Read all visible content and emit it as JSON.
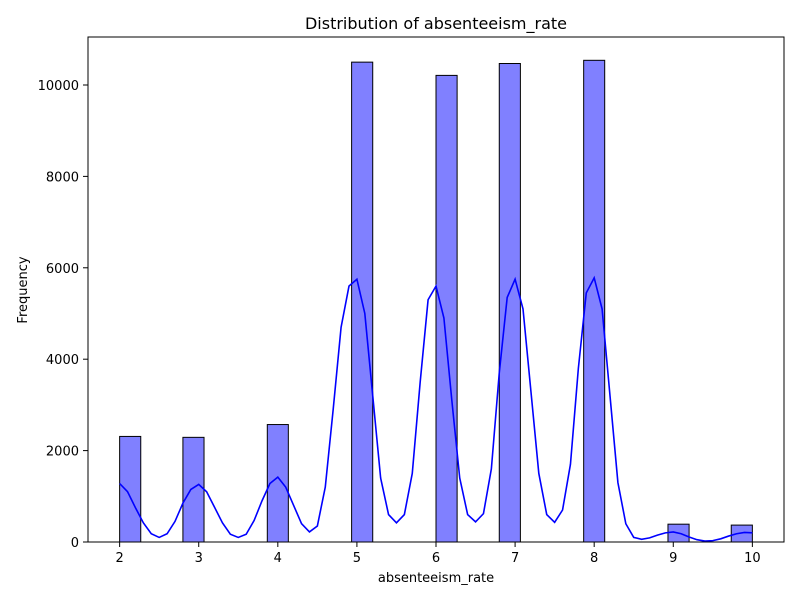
{
  "chart_data": {
    "type": "bar",
    "title": "Distribution of absenteeism_rate",
    "xlabel": "absenteeism_rate",
    "ylabel": "Frequency",
    "xlim": [
      1.6,
      10.4
    ],
    "ylim": [
      0,
      11050
    ],
    "xticks": [
      2,
      3,
      4,
      5,
      6,
      7,
      8,
      9,
      10
    ],
    "yticks": [
      0,
      2000,
      4000,
      6000,
      8000,
      10000
    ],
    "bar_color": "#8080ff",
    "bar_edge_color": "#000000",
    "kde_color": "#0000ff",
    "bars": [
      {
        "x_start": 2.0,
        "x_end": 2.267,
        "value": 2310
      },
      {
        "x_start": 2.8,
        "x_end": 3.067,
        "value": 2290
      },
      {
        "x_start": 3.867,
        "x_end": 4.133,
        "value": 2570
      },
      {
        "x_start": 4.933,
        "x_end": 5.2,
        "value": 10500
      },
      {
        "x_start": 6.0,
        "x_end": 6.267,
        "value": 10210
      },
      {
        "x_start": 6.8,
        "x_end": 7.067,
        "value": 10470
      },
      {
        "x_start": 7.867,
        "x_end": 8.133,
        "value": 10540
      },
      {
        "x_start": 8.933,
        "x_end": 9.2,
        "value": 390
      },
      {
        "x_start": 9.733,
        "x_end": 10.0,
        "value": 370
      }
    ],
    "kde": {
      "x": [
        2.0,
        2.1,
        2.2,
        2.3,
        2.4,
        2.5,
        2.6,
        2.7,
        2.8,
        2.9,
        3.0,
        3.1,
        3.2,
        3.3,
        3.4,
        3.5,
        3.6,
        3.7,
        3.8,
        3.9,
        4.0,
        4.1,
        4.2,
        4.3,
        4.4,
        4.5,
        4.6,
        4.7,
        4.8,
        4.9,
        5.0,
        5.1,
        5.2,
        5.3,
        5.4,
        5.5,
        5.6,
        5.7,
        5.8,
        5.9,
        6.0,
        6.1,
        6.2,
        6.3,
        6.4,
        6.5,
        6.6,
        6.7,
        6.8,
        6.9,
        7.0,
        7.1,
        7.2,
        7.3,
        7.4,
        7.5,
        7.6,
        7.7,
        7.8,
        7.9,
        8.0,
        8.1,
        8.2,
        8.3,
        8.4,
        8.5,
        8.6,
        8.7,
        8.8,
        8.9,
        9.0,
        9.1,
        9.2,
        9.3,
        9.4,
        9.5,
        9.6,
        9.7,
        9.8,
        9.9,
        10.0
      ],
      "y": [
        1280,
        1100,
        750,
        420,
        180,
        100,
        180,
        450,
        850,
        1150,
        1260,
        1100,
        760,
        420,
        170,
        100,
        170,
        470,
        900,
        1280,
        1420,
        1200,
        800,
        400,
        220,
        350,
        1200,
        2900,
        4700,
        5600,
        5750,
        5000,
        3200,
        1400,
        600,
        420,
        600,
        1500,
        3500,
        5300,
        5600,
        4900,
        3100,
        1400,
        600,
        440,
        620,
        1600,
        3700,
        5350,
        5750,
        5100,
        3300,
        1500,
        600,
        430,
        700,
        1700,
        3800,
        5450,
        5780,
        5100,
        3200,
        1300,
        400,
        100,
        60,
        90,
        150,
        200,
        220,
        180,
        110,
        50,
        20,
        30,
        70,
        130,
        180,
        210,
        200
      ]
    }
  }
}
